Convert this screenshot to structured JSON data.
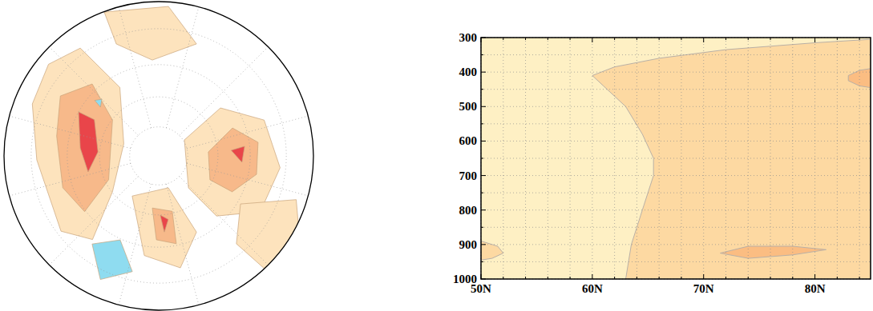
{
  "chart_data": [
    {
      "type": "polar_map",
      "grid": true,
      "lat_range": [
        20,
        90
      ],
      "parallels": [
        30,
        45,
        60,
        75
      ],
      "meridians": [
        0,
        30,
        60,
        90,
        120,
        150,
        180,
        210,
        240,
        270,
        300,
        330
      ],
      "regions": [
        {
          "color": "#fde3bd",
          "points": [
            [
              -174.8,
              24
            ],
            [
              171,
              27.7
            ],
            [
              164.5,
              50.7
            ],
            [
              -154.2,
              71
            ],
            [
              -97.2,
              60.3
            ],
            [
              -83.3,
              38.4
            ],
            [
              -97.3,
              31.6
            ],
            [
              -133.1,
              32.2
            ],
            [
              -157.4,
              26.5
            ]
          ]
        },
        {
          "color": "#fde3bd",
          "points": [
            [
              77,
              74.4
            ],
            [
              82.9,
              51
            ],
            [
              63.8,
              36.5
            ],
            [
              39.4,
              32.2
            ],
            [
              16.1,
              34.6
            ],
            [
              -1.2,
              48.6
            ],
            [
              -2.2,
              67.6
            ]
          ]
        },
        {
          "color": "#fde3bd",
          "points": [
            [
              14.5,
              43.5
            ],
            [
              27.3,
              23.7
            ],
            [
              12,
              15.2
            ],
            [
              -1.6,
              16.4
            ],
            [
              -3.6,
              34
            ]
          ]
        },
        {
          "color": "#fde3bd",
          "points": [
            [
              -78.4,
              65.4
            ],
            [
              -28.3,
              72.8
            ],
            [
              -18.7,
              47.8
            ],
            [
              -34.1,
              35.3
            ],
            [
              -53.2,
              40.9
            ]
          ]
        },
        {
          "color": "#fde3bd",
          "points": [
            [
              155.7,
              20.2
            ],
            [
              131.3,
              21.6
            ],
            [
              116.4,
              33.6
            ],
            [
              138.8,
              42.9
            ],
            [
              155.7,
              33
            ]
          ]
        },
        {
          "color": "#f7b98a",
          "points": [
            [
              -166.4,
              34.9
            ],
            [
              177.7,
              42.1
            ],
            [
              -172.8,
              60.3
            ],
            [
              -109.5,
              61.8
            ],
            [
              -98,
              44.4
            ],
            [
              -116.6,
              40.8
            ],
            [
              -146,
              39.6
            ]
          ]
        },
        {
          "color": "#f7b98a",
          "points": [
            [
              49.6,
              64.6
            ],
            [
              65.8,
              50.7
            ],
            [
              52.8,
              41.2
            ],
            [
              34.3,
              41.5
            ],
            [
              18.9,
              49.4
            ],
            [
              19.9,
              61.3
            ]
          ]
        },
        {
          "color": "#f7b98a",
          "points": [
            [
              -52,
              63.2
            ],
            [
              -31.3,
              61
            ],
            [
              -33.7,
              45.8
            ],
            [
              -46.6,
              48.3
            ]
          ]
        },
        {
          "color": "#e9454a",
          "points": [
            [
              -163.8,
              45
            ],
            [
              -164.4,
              53
            ],
            [
              -138.8,
              59.2
            ],
            [
              -122.2,
              53.7
            ],
            [
              -140.8,
              50.7
            ]
          ]
        },
        {
          "color": "#e9454a",
          "points": [
            [
              49.4,
              53.6
            ],
            [
              51.4,
              47.3
            ],
            [
              40.6,
              48.6
            ]
          ]
        },
        {
          "color": "#e9454a",
          "points": [
            [
              -43.5,
              59.9
            ],
            [
              -36.5,
              57.5
            ],
            [
              -40.8,
              51.8
            ]
          ]
        },
        {
          "color": "#8fdcf0",
          "points": [
            [
              -82,
              36.8
            ],
            [
              -69.6,
              44.5
            ],
            [
              -57.8,
              33.4
            ],
            [
              -70.2,
              26.4
            ]
          ]
        },
        {
          "color": "#8fdcf0",
          "points": [
            [
              -175,
              52
            ],
            [
              -180,
              50
            ],
            [
              -176,
              48
            ]
          ]
        }
      ]
    },
    {
      "type": "contour",
      "grid": true,
      "xlim": [
        50,
        85
      ],
      "ylim": [
        1000,
        300
      ],
      "xticks": [
        {
          "value": 50,
          "label": "50N"
        },
        {
          "value": 60,
          "label": "60N"
        },
        {
          "value": 70,
          "label": "70N"
        },
        {
          "value": 80,
          "label": "80N"
        }
      ],
      "yticks": [
        300,
        400,
        500,
        600,
        700,
        800,
        900,
        1000
      ],
      "xminor": [
        52,
        54,
        56,
        58,
        62,
        64,
        66,
        68,
        72,
        74,
        76,
        78,
        82,
        84
      ],
      "yminor": [
        350,
        450,
        550,
        650,
        750,
        850,
        950
      ],
      "regions": [
        {
          "color": "#fef0c4",
          "points": [
            [
              50,
              300
            ],
            [
              85,
              300
            ],
            [
              85,
              1000
            ],
            [
              50,
              1000
            ]
          ]
        },
        {
          "color": "#fdd9a2",
          "points": [
            [
              60,
              410
            ],
            [
              62,
              385
            ],
            [
              66,
              360
            ],
            [
              72,
              335
            ],
            [
              80,
              315
            ],
            [
              85,
              305
            ],
            [
              85,
              1000
            ],
            [
              63,
              1000
            ],
            [
              63.5,
              900
            ],
            [
              64.5,
              800
            ],
            [
              65.5,
              700
            ],
            [
              65.5,
              650
            ],
            [
              64.5,
              580
            ],
            [
              63,
              500
            ],
            [
              61,
              440
            ]
          ]
        },
        {
          "color": "#fdd9a2",
          "points": [
            [
              50,
              890
            ],
            [
              51.5,
              905
            ],
            [
              52,
              925
            ],
            [
              51,
              940
            ],
            [
              50,
              945
            ]
          ]
        },
        {
          "color": "#fbbd82",
          "points": [
            [
              71.5,
              925
            ],
            [
              74,
              905
            ],
            [
              78,
              905
            ],
            [
              81,
              915
            ],
            [
              78,
              930
            ],
            [
              74,
              940
            ]
          ]
        },
        {
          "color": "#fbbd82",
          "points": [
            [
              83,
              410
            ],
            [
              84,
              395
            ],
            [
              85,
              390
            ],
            [
              85,
              445
            ],
            [
              84,
              440
            ],
            [
              83,
              425
            ]
          ]
        }
      ]
    }
  ]
}
